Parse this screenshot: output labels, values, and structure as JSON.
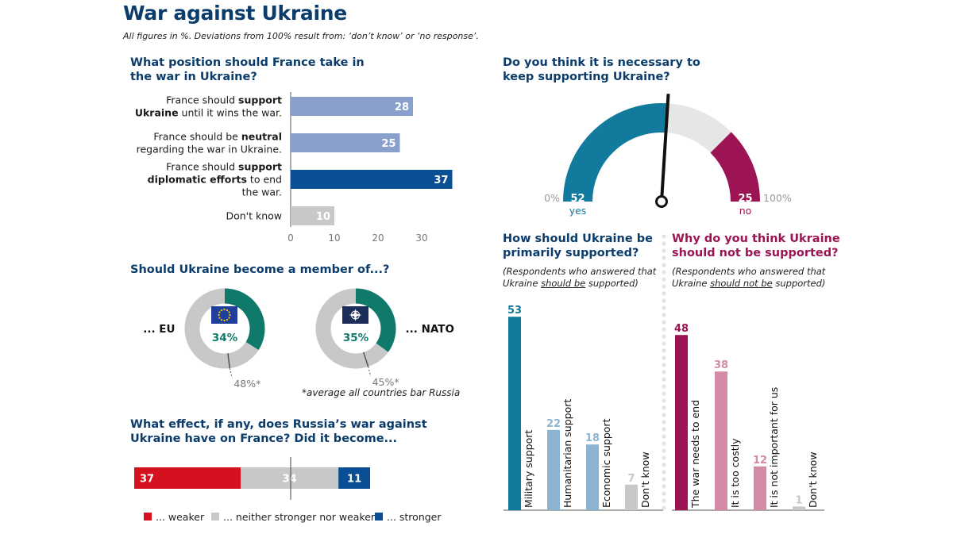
{
  "header": {
    "title": "War against Ukraine",
    "subtitle": "All figures in %. Deviations from 100% result from: ‘don’t know’ or ‘no response’."
  },
  "colors": {
    "navy": "#0b3c6b",
    "light_blue": "#8aa0cc",
    "dark_blue": "#0a4f94",
    "grey": "#c8c8c8",
    "teal": "#0f7a6a",
    "gauge_blue": "#127a9c",
    "gauge_magenta": "#9c1454",
    "red": "#d5101f",
    "support_blue": "#127a9c",
    "support_light": "#8ab4d2",
    "nosupport_magenta": "#9c1454",
    "nosupport_pink": "#d28aa6"
  },
  "position": {
    "question": [
      "What position should France take in",
      "the war in Ukraine?"
    ],
    "rows": [
      {
        "lines": [
          [
            [
              "France should ",
              false
            ],
            [
              "support",
              true
            ]
          ],
          [
            [
              "Ukraine",
              true
            ],
            [
              " until it wins the war.",
              false
            ]
          ]
        ],
        "value": 28,
        "color": "#8aa0cc"
      },
      {
        "lines": [
          [
            [
              "France should be ",
              false
            ],
            [
              "neutral",
              true
            ]
          ],
          [
            [
              "regarding the war in Ukraine.",
              false
            ]
          ]
        ],
        "value": 25,
        "color": "#8aa0cc"
      },
      {
        "lines": [
          [
            [
              "France should ",
              false
            ],
            [
              "support",
              true
            ]
          ],
          [
            [
              "diplomatic efforts",
              true
            ],
            [
              " to end",
              false
            ]
          ],
          [
            [
              "the war.",
              false
            ]
          ]
        ],
        "value": 37,
        "color": "#0a4f94"
      },
      {
        "lines": [
          [
            [
              "Don't know",
              false
            ]
          ]
        ],
        "value": 10,
        "color": "#c8c8c8"
      }
    ],
    "ticks": [
      0,
      10,
      20,
      30
    ]
  },
  "membership": {
    "question": "Should Ukraine become a member of...?",
    "eu": {
      "label": "... EU",
      "value": 34,
      "avg": 48,
      "value_text": "34%",
      "avg_text": "48%*"
    },
    "nato": {
      "label": "... NATO",
      "value": 35,
      "avg": 45,
      "value_text": "35%",
      "avg_text": "45%*"
    },
    "footnote": "*average all countries bar Russia"
  },
  "effect": {
    "question": [
      "What effect, if any, does Russia’s war against",
      "Ukraine have on France? Did it become..."
    ],
    "segments": [
      {
        "label": "... weaker",
        "value": 37,
        "color": "#d5101f",
        "text_color": "#ffffff"
      },
      {
        "label": "... neither stronger nor weaker",
        "value": 34,
        "color": "#c8c8c8",
        "text_color": "#ffffff"
      },
      {
        "label": "... stronger",
        "value": 11,
        "color": "#0a4f94",
        "text_color": "#ffffff"
      }
    ]
  },
  "gauge": {
    "question": [
      "Do you think it is necessary to",
      "keep supporting Ukraine?"
    ],
    "yes": 52,
    "no": 25,
    "yes_label": "yes",
    "no_label": "no",
    "min_label": "0%",
    "max_label": "100%"
  },
  "support": {
    "question": [
      "How should Ukraine be",
      "primarily supported?"
    ],
    "note_lines": [
      [
        [
          "(Respondents who answered that",
          ""
        ]
      ],
      [
        [
          "Ukraine ",
          ""
        ],
        [
          "should be",
          "u"
        ],
        [
          " supported)",
          ""
        ]
      ]
    ],
    "bars": [
      {
        "label": "Military support",
        "value": 53,
        "color": "#127a9c",
        "label_color": "#127a9c"
      },
      {
        "label": "Humanitarian support",
        "value": 22,
        "color": "#8ab4d2",
        "label_color": "#8ab4d2"
      },
      {
        "label": "Economic support",
        "value": 18,
        "color": "#8ab4d2",
        "label_color": "#8ab4d2"
      },
      {
        "label": "Don't know",
        "value": 7,
        "color": "#c8c8c8",
        "label_color": "#c8c8c8"
      }
    ]
  },
  "no_support": {
    "question": [
      "Why do you think Ukraine",
      "should not be supported?"
    ],
    "note_lines": [
      [
        [
          "(Respondents who answered that",
          ""
        ]
      ],
      [
        [
          "Ukraine ",
          ""
        ],
        [
          "should not be",
          "u"
        ],
        [
          " supported)",
          ""
        ]
      ]
    ],
    "bars": [
      {
        "label": "The war needs to end",
        "value": 48,
        "color": "#9c1454",
        "label_color": "#9c1454"
      },
      {
        "label": "It is too costly",
        "value": 38,
        "color": "#d28aa6",
        "label_color": "#d28aa6"
      },
      {
        "label": "It is not important for us",
        "value": 12,
        "color": "#d28aa6",
        "label_color": "#d28aa6"
      },
      {
        "label": "Don't know",
        "value": 1,
        "color": "#c8c8c8",
        "label_color": "#c8c8c8"
      }
    ]
  },
  "chart_data": [
    {
      "type": "bar",
      "title": "What position should France take in the war in Ukraine?",
      "categories": [
        "France should support Ukraine until it wins the war.",
        "France should be neutral regarding the war in Ukraine.",
        "France should support diplomatic efforts to end the war.",
        "Don't know"
      ],
      "values": [
        28,
        25,
        37,
        10
      ],
      "orientation": "horizontal",
      "xlim": [
        0,
        40
      ]
    },
    {
      "type": "pie",
      "title": "Should Ukraine become a member of...?",
      "categories": [
        "... EU",
        "... NATO"
      ],
      "values": [
        34,
        35
      ],
      "averages": [
        48,
        45
      ],
      "annotation": "*average all countries bar Russia"
    },
    {
      "type": "bar",
      "title": "What effect, if any, does Russia’s war against Ukraine have on France? Did it become...",
      "stacked": true,
      "categories": [
        "... weaker",
        "... neither stronger nor weaker",
        "... stronger"
      ],
      "values": [
        37,
        34,
        11
      ]
    },
    {
      "type": "pie",
      "title": "Do you think it is necessary to keep supporting Ukraine?",
      "categories": [
        "yes",
        "no"
      ],
      "values": [
        52,
        25
      ]
    },
    {
      "type": "bar",
      "title": "How should Ukraine be primarily supported?",
      "categories": [
        "Military support",
        "Humanitarian support",
        "Economic support",
        "Don't know"
      ],
      "values": [
        53,
        22,
        18,
        7
      ]
    },
    {
      "type": "bar",
      "title": "Why do you think Ukraine should not be supported?",
      "categories": [
        "The war needs to end",
        "It is too costly",
        "It is not important for us",
        "Don't know"
      ],
      "values": [
        48,
        38,
        12,
        1
      ]
    }
  ]
}
